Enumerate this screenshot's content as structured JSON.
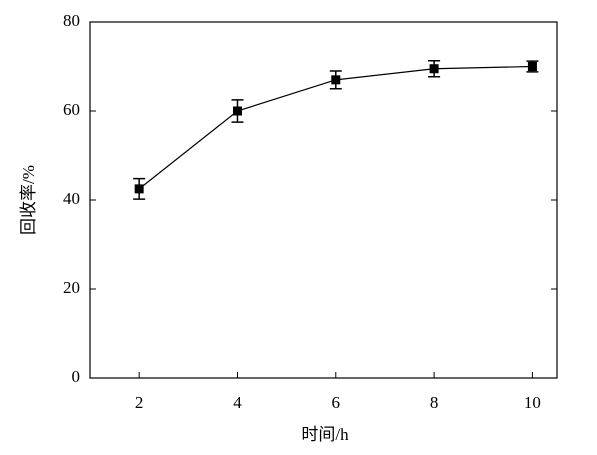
{
  "chart_data": {
    "type": "line",
    "x_label": "时间/h",
    "y_label": "回收率/%",
    "x": [
      2,
      4,
      6,
      8,
      10
    ],
    "series": [
      {
        "color": "#000000",
        "values": [
          42.5,
          60,
          67,
          69.5,
          70
        ],
        "errors": [
          2.3,
          2.5,
          2,
          1.8,
          1.2
        ]
      }
    ],
    "xlim": [
      1,
      10.5
    ],
    "ylim": [
      0,
      80
    ],
    "xticks": [
      2,
      4,
      6,
      8,
      10
    ],
    "yticks": [
      0,
      20,
      40,
      60,
      80
    ]
  }
}
